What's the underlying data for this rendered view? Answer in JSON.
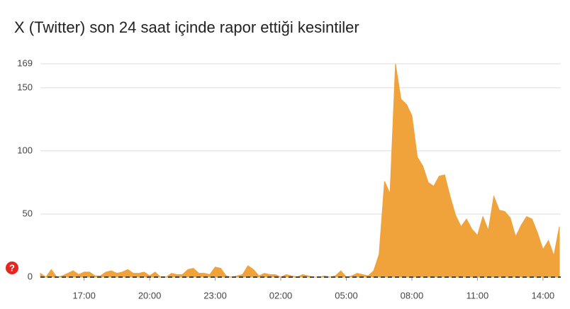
{
  "chart_data": {
    "type": "area",
    "title": "X (Twitter) son 24 saat içinde rapor ettiği kesintiler",
    "annotations": [
      "?"
    ],
    "categories": [
      "15:00",
      "15:15",
      "15:30",
      "15:45",
      "16:00",
      "16:15",
      "16:30",
      "16:45",
      "17:00",
      "17:15",
      "17:30",
      "17:45",
      "18:00",
      "18:15",
      "18:30",
      "18:45",
      "19:00",
      "19:15",
      "19:30",
      "19:45",
      "20:00",
      "20:15",
      "20:30",
      "20:45",
      "21:00",
      "21:15",
      "21:30",
      "21:45",
      "22:00",
      "22:15",
      "22:30",
      "22:45",
      "23:00",
      "23:15",
      "23:30",
      "23:45",
      "00:00",
      "00:15",
      "00:30",
      "00:45",
      "01:00",
      "01:15",
      "01:30",
      "01:45",
      "02:00",
      "02:15",
      "02:30",
      "02:45",
      "03:00",
      "03:15",
      "03:30",
      "03:45",
      "04:00",
      "04:15",
      "04:30",
      "04:45",
      "05:00",
      "05:15",
      "05:30",
      "05:45",
      "06:00",
      "06:15",
      "06:30",
      "06:45",
      "07:00",
      "07:15",
      "07:30",
      "07:45",
      "08:00",
      "08:15",
      "08:30",
      "08:45",
      "09:00",
      "09:15",
      "09:30",
      "09:45",
      "10:00",
      "10:15",
      "10:30",
      "10:45",
      "11:00",
      "11:15",
      "11:30",
      "11:45",
      "12:00",
      "12:15",
      "12:30",
      "12:45",
      "13:00",
      "13:15",
      "13:30",
      "13:45",
      "14:00",
      "14:15",
      "14:30",
      "14:45"
    ],
    "values": [
      3,
      0,
      6,
      0,
      1,
      3,
      5,
      2,
      4,
      4,
      1,
      1,
      4,
      5,
      3,
      4,
      6,
      3,
      3,
      4,
      1,
      4,
      0,
      0,
      3,
      2,
      2,
      6,
      7,
      3,
      3,
      2,
      8,
      7,
      1,
      0,
      1,
      2,
      9,
      6,
      1,
      3,
      2,
      2,
      0,
      2,
      1,
      0,
      2,
      1,
      0,
      0,
      1,
      0,
      1,
      5,
      0,
      1,
      3,
      2,
      1,
      5,
      18,
      76,
      66,
      169,
      141,
      137,
      128,
      95,
      88,
      75,
      72,
      80,
      81,
      64,
      49,
      40,
      46,
      38,
      33,
      48,
      37,
      64,
      53,
      52,
      47,
      32,
      41,
      48,
      46,
      35,
      22,
      29,
      17,
      40
    ],
    "color": "#f0a23b",
    "ylim": [
      0,
      169
    ],
    "yticks": [
      0,
      50,
      100,
      150,
      169
    ],
    "xticks": [
      "17:00",
      "20:00",
      "23:00",
      "02:00",
      "05:00",
      "08:00",
      "11:00",
      "14:00"
    ],
    "grid": true
  }
}
